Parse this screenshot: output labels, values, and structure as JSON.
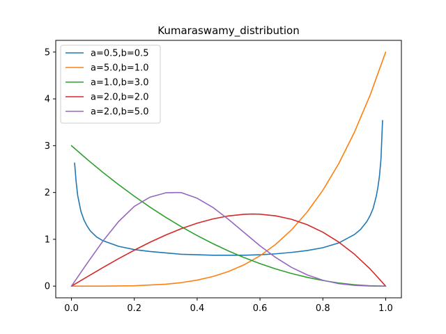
{
  "chart_data": {
    "type": "line",
    "title": "Kumaraswamy_distribution",
    "xlabel": "",
    "ylabel": "",
    "xlim": [
      -0.05,
      1.05
    ],
    "ylim": [
      -0.25,
      5.25
    ],
    "xticks": [
      0.0,
      0.2,
      0.4,
      0.6,
      0.8,
      1.0
    ],
    "xtick_labels": [
      "0.0",
      "0.2",
      "0.4",
      "0.6",
      "0.8",
      "1.0"
    ],
    "yticks": [
      0,
      1,
      2,
      3,
      4,
      5
    ],
    "ytick_labels": [
      "0",
      "1",
      "2",
      "3",
      "4",
      "5"
    ],
    "grid": false,
    "legend_position": "top-left",
    "series": [
      {
        "name": "a=0.5,b=0.5",
        "color": "#1f77b4",
        "x": [
          0.01,
          0.015,
          0.02,
          0.03,
          0.04,
          0.05,
          0.06,
          0.08,
          0.1,
          0.15,
          0.2,
          0.25,
          0.3,
          0.35,
          0.4,
          0.45,
          0.5,
          0.55,
          0.6,
          0.65,
          0.7,
          0.75,
          0.8,
          0.85,
          0.9,
          0.92,
          0.94,
          0.95,
          0.96,
          0.97,
          0.975,
          0.98,
          0.985,
          0.99
        ],
        "y": [
          2.63,
          2.22,
          1.93,
          1.6,
          1.41,
          1.28,
          1.18,
          1.05,
          0.97,
          0.85,
          0.78,
          0.74,
          0.71,
          0.68,
          0.67,
          0.66,
          0.66,
          0.66,
          0.67,
          0.69,
          0.72,
          0.76,
          0.82,
          0.92,
          1.1,
          1.21,
          1.38,
          1.5,
          1.66,
          1.92,
          2.1,
          2.34,
          2.71,
          3.54
        ]
      },
      {
        "name": "a=5.0,b=1.0",
        "color": "#ff7f0e",
        "x": [
          0.0,
          0.1,
          0.2,
          0.3,
          0.35,
          0.4,
          0.45,
          0.5,
          0.55,
          0.6,
          0.65,
          0.7,
          0.75,
          0.8,
          0.85,
          0.9,
          0.95,
          1.0
        ],
        "y": [
          0.0,
          0.0005,
          0.008,
          0.0405,
          0.075,
          0.128,
          0.205,
          0.3125,
          0.4575,
          0.648,
          0.8925,
          1.2005,
          1.582,
          2.048,
          2.61,
          3.2805,
          4.0725,
          5.0
        ]
      },
      {
        "name": "a=1.0,b=3.0",
        "color": "#2ca02c",
        "x": [
          0.0,
          0.05,
          0.1,
          0.15,
          0.2,
          0.25,
          0.3,
          0.35,
          0.4,
          0.45,
          0.5,
          0.55,
          0.6,
          0.65,
          0.7,
          0.75,
          0.8,
          0.85,
          0.9,
          0.95,
          1.0
        ],
        "y": [
          3.0,
          2.7075,
          2.43,
          2.1675,
          1.92,
          1.6875,
          1.47,
          1.2675,
          1.08,
          0.9075,
          0.75,
          0.6075,
          0.48,
          0.3675,
          0.27,
          0.1875,
          0.12,
          0.0675,
          0.03,
          0.0075,
          0.0
        ]
      },
      {
        "name": "a=2.0,b=2.0",
        "color": "#d62728",
        "x": [
          0.0,
          0.05,
          0.1,
          0.15,
          0.2,
          0.25,
          0.3,
          0.35,
          0.4,
          0.45,
          0.5,
          0.55,
          0.577,
          0.6,
          0.65,
          0.7,
          0.75,
          0.8,
          0.85,
          0.9,
          0.95,
          1.0
        ],
        "y": [
          0.0,
          0.1995,
          0.396,
          0.5865,
          0.768,
          0.9375,
          1.092,
          1.2285,
          1.344,
          1.4355,
          1.5,
          1.5345,
          1.54,
          1.536,
          1.5015,
          1.428,
          1.3125,
          1.152,
          0.9435,
          0.684,
          0.3705,
          0.0
        ]
      },
      {
        "name": "a=2.0,b=5.0",
        "color": "#9467bd",
        "x": [
          0.0,
          0.05,
          0.1,
          0.15,
          0.2,
          0.25,
          0.3,
          0.333,
          0.35,
          0.4,
          0.45,
          0.5,
          0.55,
          0.6,
          0.65,
          0.7,
          0.75,
          0.8,
          0.85,
          0.9,
          0.95,
          1.0
        ],
        "y": [
          0.0,
          0.488,
          0.9606,
          1.3797,
          1.7038,
          1.9,
          1.9929,
          2.0,
          1.9968,
          1.8769,
          1.6819,
          1.4238,
          1.1417,
          0.8615,
          0.6105,
          0.4011,
          0.2403,
          0.1258,
          0.0542,
          0.0168,
          0.0024,
          0.0
        ]
      }
    ]
  }
}
